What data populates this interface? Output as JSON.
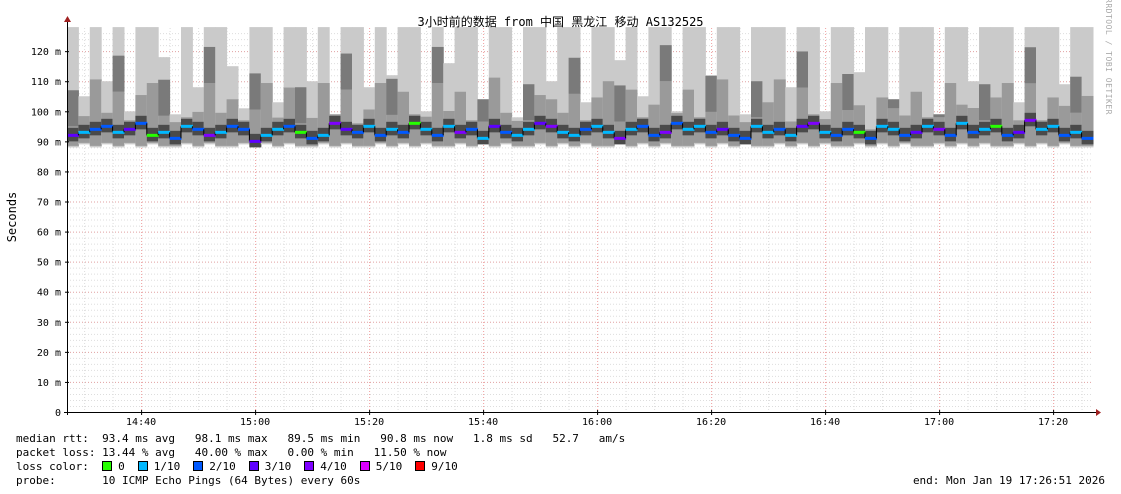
{
  "chart_data": {
    "type": "area",
    "title": "3小时前的数据 from  中国 黑龙江 移动 AS132525",
    "ylabel": "Seconds",
    "ylim": [
      0,
      127.7
    ],
    "yticks": [
      0,
      10,
      20,
      30,
      40,
      50,
      60,
      70,
      80,
      90,
      100,
      110,
      120
    ],
    "ytick_labels": [
      "0",
      "10 m",
      "20 m",
      "30 m",
      "40 m",
      "50 m",
      "60 m",
      "70 m",
      "80 m",
      "90 m",
      "100 m",
      "110 m",
      "120 m"
    ],
    "xrange_minutes": [
      0,
      180
    ],
    "xtick_minutes": [
      13,
      33,
      53,
      73,
      93,
      113,
      133,
      153,
      173
    ],
    "xtick_labels": [
      "14:40",
      "15:00",
      "15:20",
      "15:40",
      "16:00",
      "16:20",
      "16:40",
      "17:00",
      "17:20"
    ],
    "interval_minutes": 2,
    "median_ms": [
      92,
      93,
      94,
      95,
      93,
      94,
      96,
      92,
      93,
      91,
      95,
      94,
      92,
      93,
      95,
      94,
      90,
      92,
      94,
      95,
      93,
      91,
      92,
      96,
      94,
      93,
      95,
      92,
      94,
      93,
      96,
      94,
      92,
      95,
      93,
      94,
      91,
      95,
      93,
      92,
      94,
      96,
      95,
      93,
      92,
      94,
      95,
      93,
      91,
      94,
      95,
      92,
      93,
      96,
      94,
      95,
      93,
      94,
      92,
      91,
      95,
      93,
      94,
      92,
      95,
      96,
      93,
      92,
      94,
      93,
      91,
      95,
      94,
      92,
      93,
      95,
      94,
      92,
      96,
      93,
      94,
      95,
      92,
      93,
      97,
      94,
      95,
      92,
      93,
      91
    ],
    "loss_of_10": [
      3,
      1,
      2,
      2,
      1,
      3,
      2,
      0,
      1,
      2,
      1,
      2,
      4,
      1,
      2,
      2,
      3,
      1,
      1,
      2,
      0,
      2,
      1,
      4,
      3,
      2,
      1,
      2,
      1,
      2,
      0,
      1,
      2,
      1,
      4,
      2,
      1,
      3,
      2,
      1,
      1,
      3,
      4,
      1,
      1,
      2,
      1,
      1,
      4,
      1,
      2,
      2,
      4,
      2,
      1,
      1,
      2,
      3,
      2,
      2,
      1,
      1,
      2,
      1,
      3,
      4,
      1,
      2,
      2,
      0,
      2,
      1,
      1,
      2,
      3,
      1,
      4,
      2,
      1,
      2,
      1,
      0,
      2,
      3,
      4,
      1,
      1,
      2,
      1,
      2
    ],
    "max_ms": [
      128,
      105,
      128,
      110,
      128,
      100,
      128,
      128,
      118,
      99,
      128,
      108,
      128,
      128,
      115,
      101,
      128,
      128,
      103,
      128,
      128,
      110,
      128,
      99,
      128,
      128,
      108,
      128,
      112,
      128,
      128,
      100,
      128,
      116,
      128,
      128,
      104,
      128,
      128,
      98,
      128,
      128,
      110,
      128,
      128,
      103,
      128,
      128,
      117,
      128,
      105,
      128,
      128,
      100,
      128,
      128,
      112,
      128,
      128,
      99,
      128,
      128,
      128,
      108,
      128,
      128,
      100,
      128,
      128,
      113,
      128,
      128,
      104,
      128,
      128,
      128,
      99,
      128,
      128,
      110,
      128,
      128,
      128,
      103,
      128,
      128,
      128,
      109,
      128,
      128
    ],
    "min_ms": [
      88,
      89,
      88,
      89,
      88,
      89,
      88,
      89,
      88,
      88,
      89,
      88,
      89,
      88,
      88,
      89,
      88,
      89,
      88,
      89,
      88,
      88,
      89,
      88,
      89,
      88,
      88,
      89,
      88,
      89,
      88,
      89,
      88,
      88,
      89,
      88,
      89,
      88,
      89,
      88,
      88,
      89,
      88,
      89,
      88,
      89,
      88,
      88,
      89,
      88,
      89,
      88,
      89,
      88,
      88,
      89,
      88,
      89,
      88,
      89,
      88,
      88,
      89,
      88,
      89,
      88,
      89,
      88,
      88,
      89,
      88,
      89,
      88,
      89,
      88,
      88,
      89,
      88,
      89,
      88,
      89,
      88,
      88,
      89,
      88,
      89,
      88,
      89,
      88,
      88
    ],
    "loss_colors": {
      "0": "#26ff00",
      "1": "#00b8ff",
      "2": "#0059ff",
      "3": "#5e00ff",
      "4": "#7e00ff",
      "5": "#dd00ff",
      "9": "#ff0000"
    }
  },
  "stats": {
    "median_rtt_label": "median rtt:",
    "median_rtt": "93.4 ms avg   98.1 ms max   89.5 ms min   90.8 ms now   1.8 ms sd   52.7   am/s",
    "packet_loss_label": "packet loss:",
    "packet_loss": "13.44 % avg   40.00 % max   0.00 % min   11.50 % now",
    "loss_color_label": "loss color:",
    "loss_legend": [
      {
        "label": "0",
        "color": "#26ff00"
      },
      {
        "label": "1/10",
        "color": "#00b8ff"
      },
      {
        "label": "2/10",
        "color": "#0059ff"
      },
      {
        "label": "3/10",
        "color": "#5e00ff"
      },
      {
        "label": "4/10",
        "color": "#7e00ff"
      },
      {
        "label": "5/10",
        "color": "#dd00ff"
      },
      {
        "label": "9/10",
        "color": "#ff0000"
      }
    ],
    "probe_label": "probe:",
    "probe": "10 ICMP Echo Pings (64 Bytes) every 60s",
    "end": "end: Mon Jan 19 17:26:51 2026"
  },
  "credit": "RRDTOOL / TOBI OETIKER"
}
